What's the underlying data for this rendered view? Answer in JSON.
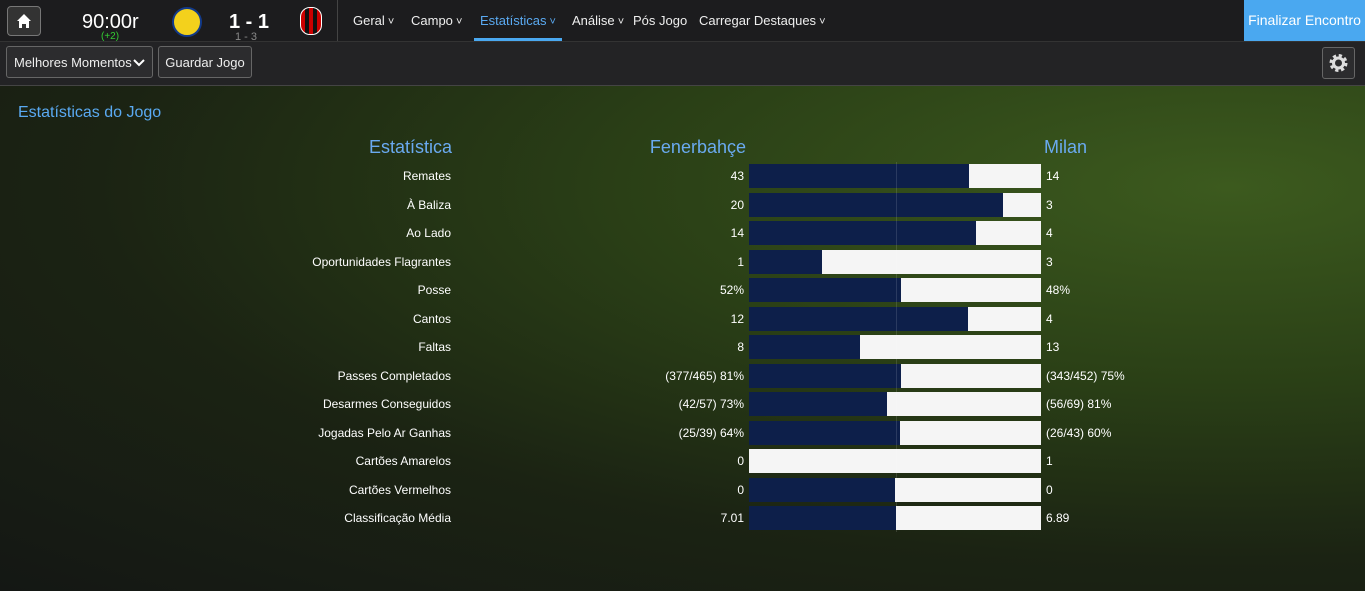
{
  "header": {
    "time": "90:00r",
    "added_time": "(+2)",
    "score": "1 - 1",
    "aggregate": "1 - 3",
    "menu": [
      "Geral",
      "Campo",
      "Estatísticas",
      "Análise",
      "Pós Jogo",
      "Carregar Destaques"
    ],
    "finish_button": "Finalizar Encontro"
  },
  "toolbar": {
    "highlights": "Melhores Momentos",
    "save": "Guardar Jogo"
  },
  "stats": {
    "title": "Estatísticas do Jogo",
    "column_stat": "Estatística",
    "home_team": "Fenerbahçe",
    "away_team": "Milan",
    "rows": [
      {
        "name": "Remates",
        "home": 43,
        "away": 14
      },
      {
        "name": "À Baliza",
        "home": 20,
        "away": 3
      },
      {
        "name": "Ao Lado",
        "home": 14,
        "away": 4
      },
      {
        "name": "Oportunidades Flagrantes",
        "home": 1,
        "away": 3
      },
      {
        "name": "Posse",
        "home": 52,
        "home_label": "52%",
        "away": 48,
        "away_label": "48%"
      },
      {
        "name": "Cantos",
        "home": 12,
        "away": 4
      },
      {
        "name": "Faltas",
        "home": 8,
        "away": 13
      },
      {
        "name": "Passes Completados",
        "home": 81,
        "home_label": "(377/465) 81%",
        "away": 75,
        "away_label": "(343/452) 75%"
      },
      {
        "name": "Desarmes Conseguidos",
        "home": 73,
        "home_label": "(42/57) 73%",
        "away": 81,
        "away_label": "(56/69) 81%"
      },
      {
        "name": "Jogadas Pelo Ar Ganhas",
        "home": 64,
        "home_label": "(25/39) 64%",
        "away": 60,
        "away_label": "(26/43) 60%"
      },
      {
        "name": "Cartões Amarelos",
        "home": 0,
        "away": 1
      },
      {
        "name": "Cartões Vermelhos",
        "home": 0,
        "away": 0
      },
      {
        "name": "Classificação Média",
        "home": 7.01,
        "away": 6.89
      }
    ]
  }
}
